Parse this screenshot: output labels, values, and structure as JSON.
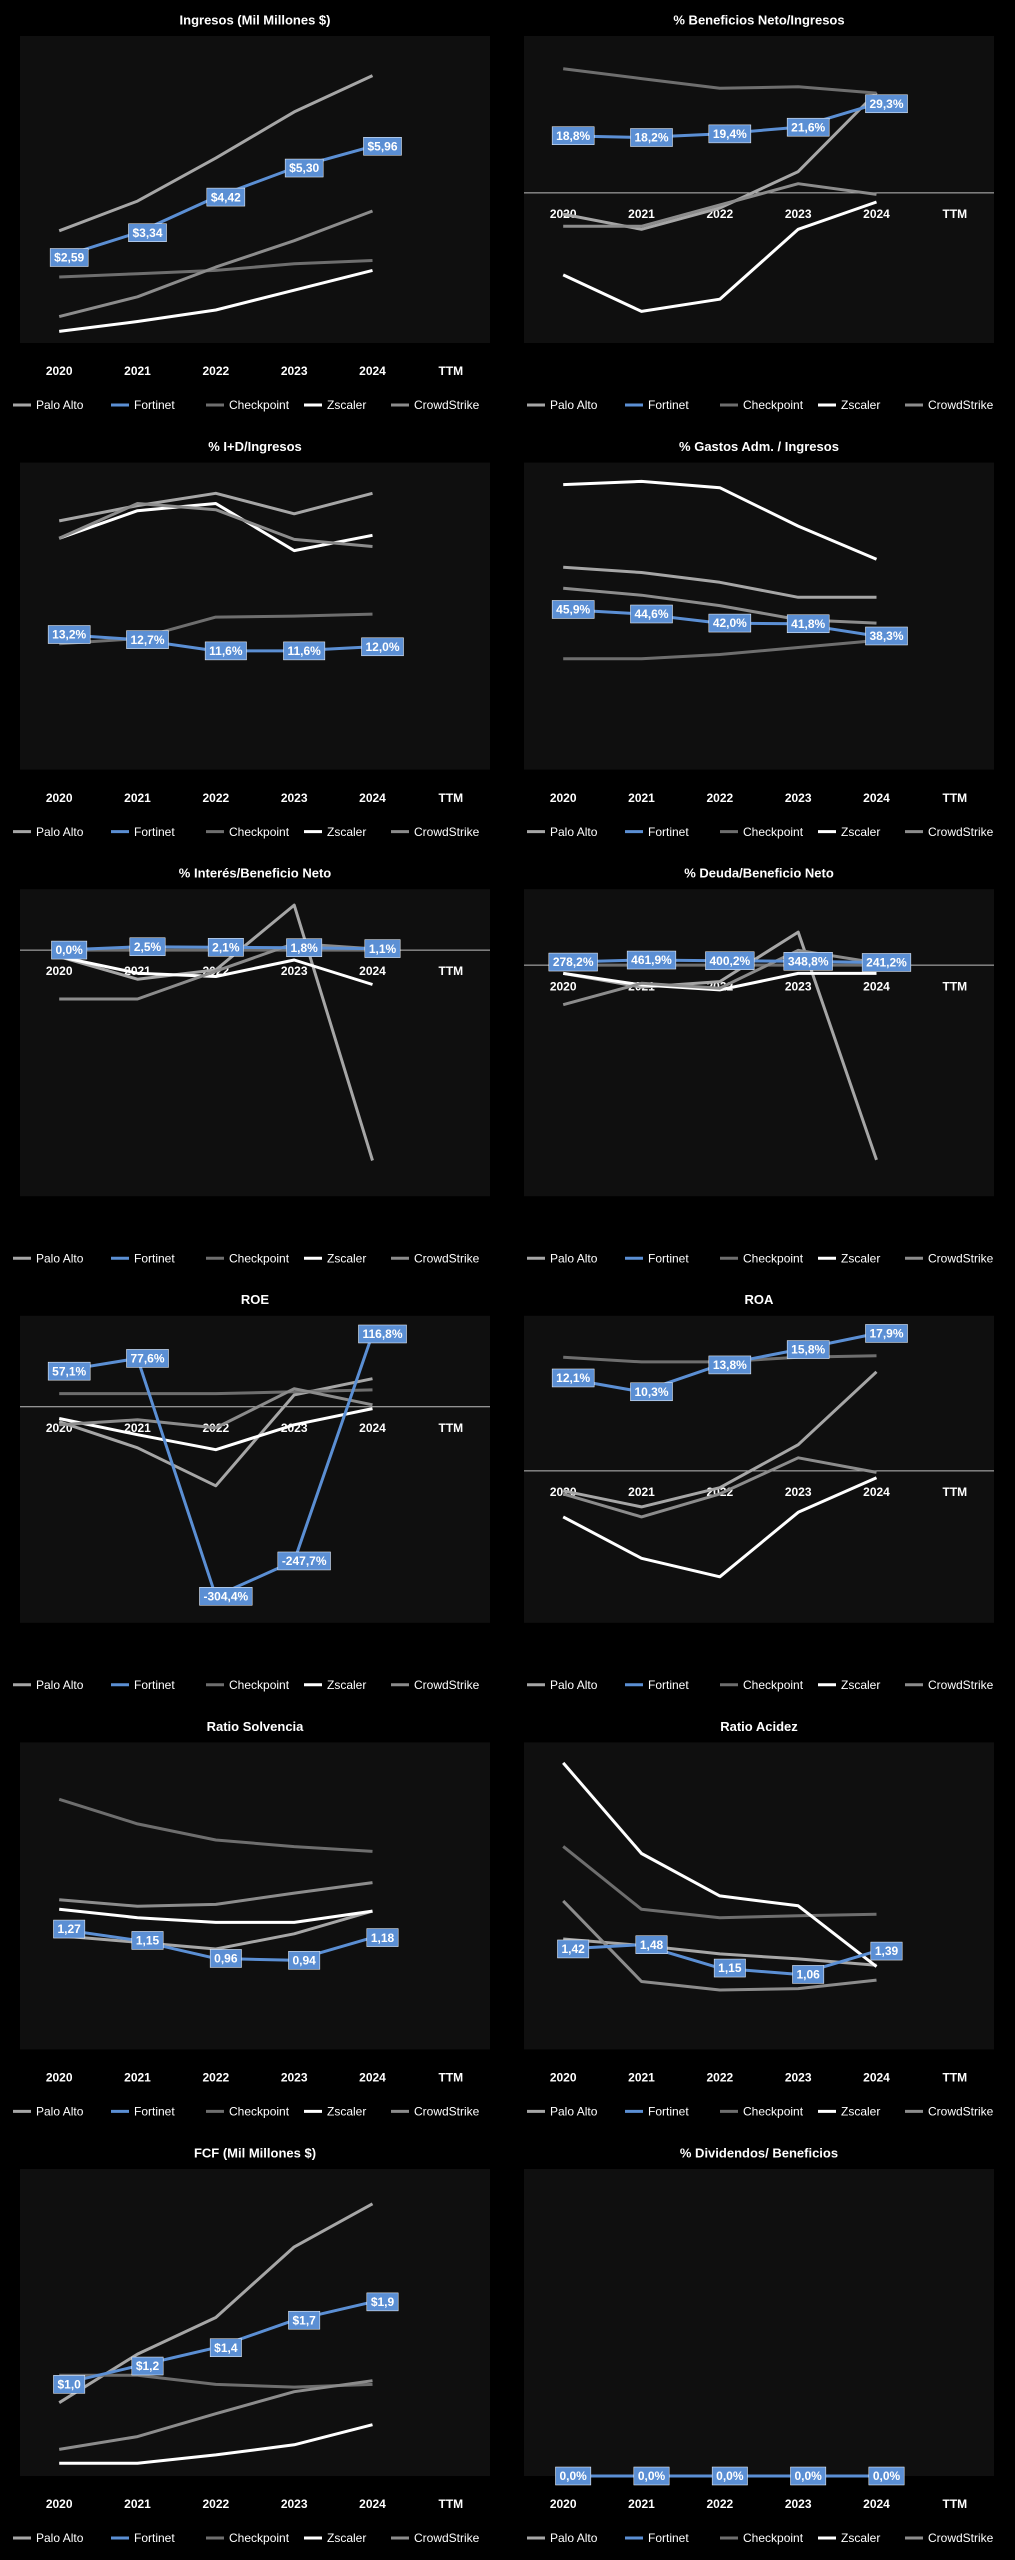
{
  "chart_data": [
    {
      "type": "line",
      "title": "Ingresos (Mil Millones $)",
      "categories": [
        "2020",
        "2021",
        "2022",
        "2023",
        "2024",
        "TTM"
      ],
      "ylim": [
        0,
        9.3
      ],
      "series": [
        {
          "name": "Palo Alto",
          "color": "#a6a6a6",
          "values": [
            3.4,
            4.3,
            5.6,
            7.0,
            8.1,
            null
          ]
        },
        {
          "name": "Fortinet",
          "color": "#5b8fd4",
          "values": [
            2.59,
            3.34,
            4.42,
            5.3,
            5.96,
            null
          ],
          "value_labels": [
            "$2,59",
            "$3,34",
            "$4,42",
            "$5,30",
            "$5,96",
            null
          ]
        },
        {
          "name": "Checkpoint",
          "color": "#6e6e6e",
          "values": [
            2.0,
            2.1,
            2.2,
            2.4,
            2.5,
            null
          ]
        },
        {
          "name": "Zscaler",
          "color": "#ffffff",
          "values": [
            0.35,
            0.65,
            1.0,
            1.6,
            2.2,
            null
          ]
        },
        {
          "name": "CrowdStrike",
          "color": "#8c8c8c",
          "values": [
            0.8,
            1.4,
            2.3,
            3.1,
            4.0,
            null
          ]
        }
      ]
    },
    {
      "type": "line",
      "title": "% Beneficios Neto/Ingresos",
      "categories": [
        "2020",
        "2021",
        "2022",
        "2023",
        "2024",
        "TTM"
      ],
      "ylim": [
        -49.4,
        51.6
      ],
      "series": [
        {
          "name": "Palo Alto",
          "color": "#a6a6a6",
          "values": [
            -7,
            -12,
            -5,
            7,
            33,
            null
          ]
        },
        {
          "name": "Fortinet",
          "color": "#5b8fd4",
          "values": [
            18.8,
            18.2,
            19.4,
            21.6,
            29.3,
            null
          ],
          "value_labels": [
            "18,8%",
            "18,2%",
            "19,4%",
            "21,6%",
            "29,3%",
            null
          ]
        },
        {
          "name": "Checkpoint",
          "color": "#6e6e6e",
          "values": [
            40.8,
            37.6,
            34.4,
            34.9,
            32.8,
            null
          ]
        },
        {
          "name": "Zscaler",
          "color": "#ffffff",
          "values": [
            -27,
            -39,
            -35,
            -12,
            -3,
            null
          ]
        },
        {
          "name": "CrowdStrike",
          "color": "#8c8c8c",
          "values": [
            -11,
            -11,
            -4,
            3,
            -0.5,
            null
          ]
        }
      ]
    },
    {
      "type": "line",
      "title": "% I+D/Ingresos",
      "categories": [
        "2020",
        "2021",
        "2022",
        "2023",
        "2024",
        "TTM"
      ],
      "ylim": [
        0,
        30
      ],
      "series": [
        {
          "name": "Palo Alto",
          "color": "#a6a6a6",
          "values": [
            24.3,
            25.8,
            27,
            25,
            27,
            null
          ]
        },
        {
          "name": "Fortinet",
          "color": "#5b8fd4",
          "values": [
            13.2,
            12.7,
            11.6,
            11.6,
            12.0,
            null
          ],
          "value_labels": [
            "13,2%",
            "12,7%",
            "11,6%",
            "11,6%",
            "12,0%",
            null
          ]
        },
        {
          "name": "Checkpoint",
          "color": "#6e6e6e",
          "values": [
            12.3,
            12.8,
            14.9,
            15.0,
            15.2,
            null
          ]
        },
        {
          "name": "Zscaler",
          "color": "#ffffff",
          "values": [
            22.6,
            25.3,
            26,
            21.4,
            22.9,
            null
          ]
        },
        {
          "name": "CrowdStrike",
          "color": "#8c8c8c",
          "values": [
            22.6,
            26,
            25.4,
            22.5,
            21.8,
            null
          ]
        }
      ]
    },
    {
      "type": "line",
      "title": "% Gastos Adm. / Ingresos",
      "categories": [
        "2020",
        "2021",
        "2022",
        "2023",
        "2024",
        "TTM"
      ],
      "ylim": [
        0,
        88
      ],
      "series": [
        {
          "name": "Palo Alto",
          "color": "#a6a6a6",
          "values": [
            58,
            56.5,
            53.7,
            49.4,
            49.4,
            null
          ]
        },
        {
          "name": "Fortinet",
          "color": "#5b8fd4",
          "values": [
            45.9,
            44.6,
            42.0,
            41.8,
            38.3,
            null
          ],
          "value_labels": [
            "45,9%",
            "44,6%",
            "42,0%",
            "41,8%",
            "38,3%",
            null
          ]
        },
        {
          "name": "Checkpoint",
          "color": "#6e6e6e",
          "values": [
            31.8,
            31.8,
            33,
            35,
            37,
            null
          ]
        },
        {
          "name": "Zscaler",
          "color": "#ffffff",
          "values": [
            81.7,
            82.6,
            80.8,
            69.8,
            60.3,
            null
          ]
        },
        {
          "name": "CrowdStrike",
          "color": "#8c8c8c",
          "values": [
            52,
            50,
            47,
            43,
            42,
            null
          ]
        }
      ]
    },
    {
      "type": "line",
      "title": "% Interés/Beneficio Neto",
      "categories": [
        "2020",
        "2021",
        "2022",
        "2023",
        "2024",
        "TTM"
      ],
      "ylim": [
        -186,
        46
      ],
      "series": [
        {
          "name": "Palo Alto",
          "color": "#a6a6a6",
          "values": [
            -5,
            -22,
            -15,
            34,
            -159,
            null
          ]
        },
        {
          "name": "Fortinet",
          "color": "#5b8fd4",
          "values": [
            0.0,
            2.5,
            2.1,
            1.8,
            1.1,
            null
          ],
          "value_labels": [
            "0,0%",
            "2,5%",
            "2,1%",
            "1,8%",
            "1,1%",
            null
          ]
        },
        {
          "name": "Checkpoint",
          "color": "#6e6e6e",
          "values": [
            0,
            0,
            0,
            0,
            0,
            null
          ]
        },
        {
          "name": "Zscaler",
          "color": "#ffffff",
          "values": [
            -5,
            -17.5,
            -20,
            -7.5,
            -26,
            null
          ]
        },
        {
          "name": "CrowdStrike",
          "color": "#8c8c8c",
          "values": [
            -37,
            -37,
            -16,
            5,
            1,
            null
          ]
        }
      ]
    },
    {
      "type": "line",
      "title": "% Deuda/Beneficio Neto",
      "categories": [
        "2020",
        "2021",
        "2022",
        "2023",
        "2024",
        "TTM"
      ],
      "ylim": [
        -21000,
        6900
      ],
      "series": [
        {
          "name": "Palo Alto",
          "color": "#a6a6a6",
          "values": [
            -750,
            -2000,
            -1500,
            3000,
            -17700,
            null
          ]
        },
        {
          "name": "Fortinet",
          "color": "#5b8fd4",
          "values": [
            278.2,
            461.9,
            400.2,
            348.8,
            241.2,
            null
          ],
          "value_labels": [
            "278,2%",
            "461,9%",
            "400,2%",
            "348,8%",
            "241,2%",
            null
          ]
        },
        {
          "name": "Checkpoint",
          "color": "#6e6e6e",
          "values": [
            0,
            0,
            0,
            0,
            0,
            null
          ]
        },
        {
          "name": "Zscaler",
          "color": "#ffffff",
          "values": [
            -750,
            -1800,
            -2250,
            -750,
            -750,
            null
          ]
        },
        {
          "name": "CrowdStrike",
          "color": "#8c8c8c",
          "values": [
            -3600,
            -1650,
            -2100,
            1350,
            200,
            null
          ]
        }
      ]
    },
    {
      "type": "line",
      "title": "ROE",
      "categories": [
        "2020",
        "2021",
        "2022",
        "2023",
        "2024",
        "TTM"
      ],
      "ylim": [
        -347,
        146
      ],
      "series": [
        {
          "name": "Palo Alto",
          "color": "#a6a6a6",
          "values": [
            -24,
            -66,
            -127,
            19,
            45,
            null
          ]
        },
        {
          "name": "Fortinet",
          "color": "#5b8fd4",
          "values": [
            57.1,
            77.6,
            -304.4,
            -247.7,
            116.8,
            null
          ],
          "value_labels": [
            "57,1%",
            "77,6%",
            "-304,4%",
            "-247,7%",
            "116,8%",
            null
          ]
        },
        {
          "name": "Checkpoint",
          "color": "#6e6e6e",
          "values": [
            21,
            21,
            21,
            24,
            27,
            null
          ]
        },
        {
          "name": "Zscaler",
          "color": "#ffffff",
          "values": [
            -19,
            -45,
            -69,
            -29,
            -3,
            null
          ]
        },
        {
          "name": "CrowdStrike",
          "color": "#8c8c8c",
          "values": [
            -29,
            -21,
            -34,
            29,
            3,
            null
          ]
        }
      ]
    },
    {
      "type": "line",
      "title": "ROA",
      "categories": [
        "2020",
        "2021",
        "2022",
        "2023",
        "2024",
        "TTM"
      ],
      "ylim": [
        -19.8,
        20.2
      ],
      "series": [
        {
          "name": "Palo Alto",
          "color": "#a6a6a6",
          "values": [
            -2.6,
            -4.7,
            -2.2,
            3.4,
            12.9,
            null
          ]
        },
        {
          "name": "Fortinet",
          "color": "#5b8fd4",
          "values": [
            12.1,
            10.3,
            13.8,
            15.8,
            17.9,
            null
          ],
          "value_labels": [
            "12,1%",
            "10,3%",
            "13,8%",
            "15,8%",
            "17,9%",
            null
          ]
        },
        {
          "name": "Checkpoint",
          "color": "#6e6e6e",
          "values": [
            14.8,
            14.2,
            14.2,
            14.8,
            15,
            null
          ]
        },
        {
          "name": "Zscaler",
          "color": "#ffffff",
          "values": [
            -6,
            -11.4,
            -13.8,
            -5.4,
            -0.9,
            null
          ]
        },
        {
          "name": "CrowdStrike",
          "color": "#8c8c8c",
          "values": [
            -3,
            -6,
            -3,
            1.7,
            -0.2,
            null
          ]
        }
      ]
    },
    {
      "type": "line",
      "title": "Ratio Solvencia",
      "categories": [
        "2020",
        "2021",
        "2022",
        "2023",
        "2024",
        "TTM"
      ],
      "ylim": [
        0,
        3.24
      ],
      "series": [
        {
          "name": "Palo Alto",
          "color": "#a6a6a6",
          "values": [
            1.2,
            1.13,
            1.06,
            1.22,
            1.46,
            null
          ]
        },
        {
          "name": "Fortinet",
          "color": "#5b8fd4",
          "values": [
            1.27,
            1.15,
            0.96,
            0.94,
            1.18,
            null
          ],
          "value_labels": [
            "1,27",
            "1,15",
            "0,96",
            "0,94",
            "1,18",
            null
          ]
        },
        {
          "name": "Checkpoint",
          "color": "#6e6e6e",
          "values": [
            2.64,
            2.38,
            2.21,
            2.14,
            2.09,
            null
          ]
        },
        {
          "name": "Zscaler",
          "color": "#ffffff",
          "values": [
            1.48,
            1.39,
            1.34,
            1.34,
            1.46,
            null
          ]
        },
        {
          "name": "CrowdStrike",
          "color": "#8c8c8c",
          "values": [
            1.58,
            1.51,
            1.53,
            1.65,
            1.76,
            null
          ]
        }
      ]
    },
    {
      "type": "line",
      "title": "Ratio Acidez",
      "categories": [
        "2020",
        "2021",
        "2022",
        "2023",
        "2024",
        "TTM"
      ],
      "ylim": [
        0,
        4.34
      ],
      "series": [
        {
          "name": "Palo Alto",
          "color": "#a6a6a6",
          "values": [
            1.56,
            1.47,
            1.35,
            1.28,
            1.19,
            null
          ]
        },
        {
          "name": "Fortinet",
          "color": "#5b8fd4",
          "values": [
            1.42,
            1.48,
            1.15,
            1.06,
            1.39,
            null
          ],
          "value_labels": [
            "1,42",
            "1,48",
            "1,15",
            "1,06",
            "1,39",
            null
          ]
        },
        {
          "name": "Checkpoint",
          "color": "#6e6e6e",
          "values": [
            2.87,
            1.98,
            1.86,
            1.89,
            1.91,
            null
          ]
        },
        {
          "name": "Zscaler",
          "color": "#ffffff",
          "values": [
            4.05,
            2.77,
            2.17,
            2.03,
            1.17,
            null
          ]
        },
        {
          "name": "CrowdStrike",
          "color": "#8c8c8c",
          "values": [
            2.1,
            0.96,
            0.84,
            0.86,
            0.98,
            null
          ]
        }
      ]
    },
    {
      "type": "line",
      "title": "FCF (Mil Millones $)",
      "categories": [
        "2020",
        "2021",
        "2022",
        "2023",
        "2024",
        "TTM"
      ],
      "ylim": [
        0,
        3.35
      ],
      "series": [
        {
          "name": "Palo Alto",
          "color": "#a6a6a6",
          "values": [
            0.8,
            1.33,
            1.73,
            2.5,
            2.97,
            null
          ]
        },
        {
          "name": "Fortinet",
          "color": "#5b8fd4",
          "values": [
            1.0,
            1.2,
            1.4,
            1.7,
            1.9,
            null
          ],
          "value_labels": [
            "$1,0",
            "$1,2",
            "$1,4",
            "$1,7",
            "$1,9",
            null
          ]
        },
        {
          "name": "Checkpoint",
          "color": "#6e6e6e",
          "values": [
            1.1,
            1.1,
            1.0,
            0.97,
            1.0,
            null
          ]
        },
        {
          "name": "Zscaler",
          "color": "#ffffff",
          "values": [
            0.14,
            0.14,
            0.23,
            0.34,
            0.56,
            null
          ]
        },
        {
          "name": "CrowdStrike",
          "color": "#8c8c8c",
          "values": [
            0.29,
            0.43,
            0.68,
            0.92,
            1.04,
            null
          ]
        }
      ]
    },
    {
      "type": "line",
      "title": "% Dividendos/ Beneficios",
      "categories": [
        "2020",
        "2021",
        "2022",
        "2023",
        "2024",
        "TTM"
      ],
      "ylim": [
        0,
        100
      ],
      "series": [
        {
          "name": "Palo Alto",
          "color": "#a6a6a6",
          "values": [
            0,
            0,
            0,
            0,
            0,
            null
          ]
        },
        {
          "name": "Fortinet",
          "color": "#5b8fd4",
          "values": [
            0.0,
            0.0,
            0.0,
            0.0,
            0.0,
            null
          ],
          "value_labels": [
            "0,0%",
            "0,0%",
            "0,0%",
            "0,0%",
            "0,0%",
            null
          ]
        },
        {
          "name": "Checkpoint",
          "color": "#6e6e6e",
          "values": [
            0,
            0,
            0,
            0,
            0,
            null
          ]
        },
        {
          "name": "Zscaler",
          "color": "#ffffff",
          "values": [
            0,
            0,
            0,
            0,
            0,
            null
          ]
        },
        {
          "name": "CrowdStrike",
          "color": "#8c8c8c",
          "values": [
            0,
            0,
            0,
            0,
            0,
            null
          ]
        }
      ]
    }
  ]
}
